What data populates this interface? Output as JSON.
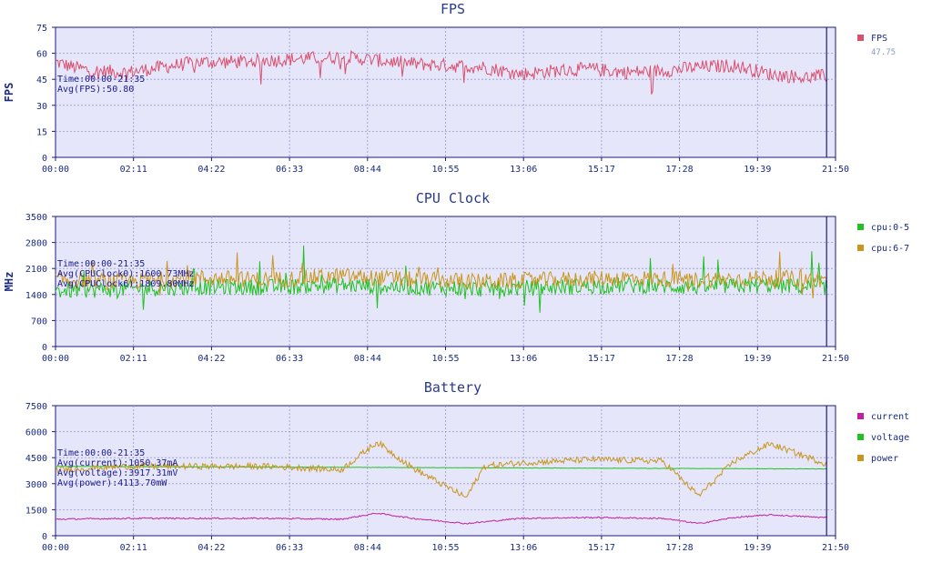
{
  "x_ticks": [
    "00:00",
    "02:11",
    "04:22",
    "06:33",
    "08:44",
    "10:55",
    "13:06",
    "15:17",
    "17:28",
    "19:39",
    "21:50"
  ],
  "charts": [
    {
      "id": "fps",
      "title": "FPS",
      "ylabel": "FPS",
      "ymax": 75,
      "yticks": [
        0,
        15,
        30,
        45,
        60,
        75
      ],
      "info_lines": [
        "Time:00:00-21:35",
        "Avg(FPS):50.80"
      ],
      "cursor_time": "21:35",
      "legend": [
        {
          "name": "FPS",
          "color": "#d9506e",
          "value": "47.75"
        }
      ]
    },
    {
      "id": "cpu",
      "title": "CPU Clock",
      "ylabel": "MHz",
      "ymax": 3500,
      "yticks": [
        0,
        700,
        1400,
        2100,
        2800,
        3500
      ],
      "info_lines": [
        "Time:00:00-21:35",
        "Avg(CPUClock0):1600.73MHz",
        "Avg(CPUClock6):1809.80MHz"
      ],
      "cursor_time": "21:35",
      "legend": [
        {
          "name": "cpu:0-5",
          "color": "#22c022"
        },
        {
          "name": "cpu:6-7",
          "color": "#c8961e"
        }
      ]
    },
    {
      "id": "battery",
      "title": "Battery",
      "ylabel": "",
      "ymax": 7500,
      "yticks": [
        0,
        1500,
        3000,
        4500,
        6000,
        7500
      ],
      "info_lines": [
        "Time:00:00-21:35",
        "Avg(current):1050.37mA",
        "Avg(voltage):3917.31mV",
        "Avg(power):4113.70mW"
      ],
      "cursor_time": "21:35",
      "legend": [
        {
          "name": "current",
          "color": "#c020a0"
        },
        {
          "name": "voltage",
          "color": "#22c022"
        },
        {
          "name": "power",
          "color": "#c8961e"
        }
      ]
    }
  ],
  "chart_data": [
    {
      "type": "line",
      "title": "FPS",
      "xlabel": "",
      "ylabel": "FPS",
      "xlim": [
        "00:00",
        "21:50"
      ],
      "ylim": [
        0,
        75
      ],
      "grid": true,
      "legend_position": "right",
      "series": [
        {
          "name": "FPS",
          "color": "#d9506e",
          "x_minutes": [
            0,
            0.5,
            1,
            2,
            3,
            4,
            5,
            6,
            7,
            8,
            9,
            10,
            11,
            12,
            13,
            14,
            15,
            16,
            17,
            18,
            19,
            20,
            21,
            21.5
          ],
          "values": [
            55,
            52,
            50,
            49,
            52,
            55,
            55,
            56,
            57,
            58,
            56,
            54,
            53,
            52,
            48,
            50,
            51,
            49,
            50,
            52,
            53,
            48,
            46,
            47
          ]
        }
      ]
    },
    {
      "type": "line",
      "title": "CPU Clock",
      "xlabel": "",
      "ylabel": "MHz",
      "xlim": [
        "00:00",
        "21:50"
      ],
      "ylim": [
        0,
        3500
      ],
      "grid": true,
      "legend_position": "right",
      "series": [
        {
          "name": "cpu:0-5",
          "color": "#22c022",
          "x_minutes": [
            0,
            2,
            4,
            6,
            8,
            10,
            12,
            14,
            16,
            18,
            20,
            21.5
          ],
          "values": [
            1500,
            1550,
            1600,
            1600,
            1650,
            1600,
            1550,
            1600,
            1650,
            1600,
            1650,
            1600
          ]
        },
        {
          "name": "cpu:6-7",
          "color": "#c8961e",
          "x_minutes": [
            0,
            2,
            4,
            6,
            8,
            10,
            12,
            14,
            16,
            18,
            20,
            21.5
          ],
          "values": [
            1800,
            1750,
            1850,
            1800,
            1900,
            1800,
            1750,
            1800,
            1850,
            1800,
            1850,
            1800
          ]
        }
      ]
    },
    {
      "type": "line",
      "title": "Battery",
      "xlabel": "",
      "ylabel": "",
      "xlim": [
        "00:00",
        "21:50"
      ],
      "ylim": [
        0,
        7500
      ],
      "grid": true,
      "legend_position": "right",
      "series": [
        {
          "name": "current",
          "color": "#c020a0",
          "x_minutes": [
            0,
            2,
            4,
            6,
            8,
            9,
            10,
            11.5,
            13,
            15,
            17,
            18,
            19,
            20,
            21.5
          ],
          "values": [
            950,
            1000,
            1000,
            1000,
            950,
            1300,
            1000,
            700,
            1000,
            1050,
            1000,
            700,
            1050,
            1200,
            1050
          ]
        },
        {
          "name": "voltage",
          "color": "#22c022",
          "x_minutes": [
            0,
            21.5
          ],
          "values": [
            4000,
            3850
          ]
        },
        {
          "name": "power",
          "color": "#c8961e",
          "x_minutes": [
            0,
            2,
            4,
            6,
            8,
            9,
            10,
            11.5,
            12,
            13,
            15,
            17,
            18,
            19,
            20,
            21.5
          ],
          "values": [
            3800,
            4000,
            4000,
            4000,
            3800,
            5400,
            3900,
            2200,
            4000,
            4200,
            4400,
            4300,
            2300,
            4300,
            5300,
            4200
          ]
        }
      ]
    }
  ]
}
